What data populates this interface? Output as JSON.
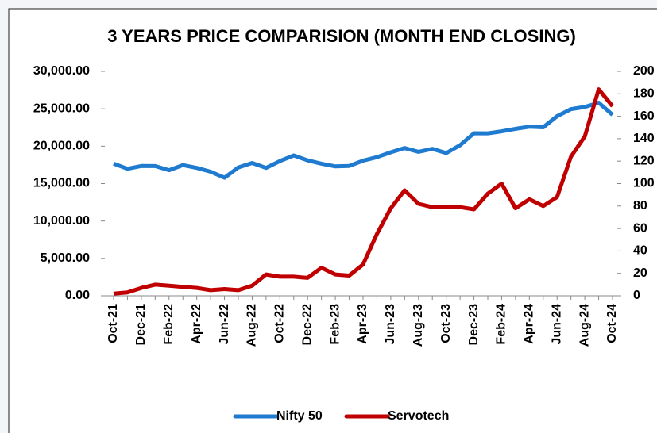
{
  "chart_data": {
    "type": "line",
    "title": "3 YEARS PRICE COMPARISION (MONTH END CLOSING)",
    "categories": [
      "Oct-21",
      null,
      "Dec-21",
      null,
      "Feb-22",
      null,
      "Apr-22",
      null,
      "Jun-22",
      null,
      "Aug-22",
      null,
      "Oct-22",
      null,
      "Dec-22",
      null,
      "Feb-23",
      null,
      "Apr-23",
      null,
      "Jun-23",
      null,
      "Aug-23",
      null,
      "Oct-23",
      null,
      "Dec-23",
      null,
      "Feb-24",
      null,
      "Apr-24",
      null,
      "Jun-24",
      null,
      "Aug-24",
      null,
      "Oct-24"
    ],
    "series": [
      {
        "name": "Nifty 50",
        "color": "#1f7bd0",
        "values": [
          17672,
          16983,
          17354,
          17340,
          16794,
          17465,
          17103,
          16585,
          15780,
          17158,
          17759,
          17094,
          18012,
          18758,
          18105,
          17662,
          17304,
          17360,
          18065,
          18534,
          19189,
          19754,
          19254,
          19638,
          19080,
          20133,
          21731,
          21726,
          21983,
          22327,
          22605,
          22531,
          24011,
          24951,
          25236,
          25811,
          24205
        ]
      },
      {
        "name": "Servotech",
        "color": "#c00000",
        "axis": "y2",
        "values": [
          2,
          3,
          7,
          10,
          9,
          8,
          7,
          5,
          6,
          5,
          9,
          19,
          17,
          17,
          16,
          25,
          19,
          18,
          28,
          55,
          78,
          94,
          82,
          79,
          79,
          79,
          77,
          91,
          100,
          78,
          86,
          80,
          88,
          124,
          142,
          184,
          169
        ]
      }
    ],
    "ylim": [
      0,
      30000
    ],
    "yticks": [
      {
        "value": 0,
        "label": "0.00"
      },
      {
        "value": 5000,
        "label": "5,000.00"
      },
      {
        "value": 10000,
        "label": "10,000.00"
      },
      {
        "value": 15000,
        "label": "15,000.00"
      },
      {
        "value": 20000,
        "label": "20,000.00"
      },
      {
        "value": 25000,
        "label": "25,000.00"
      },
      {
        "value": 30000,
        "label": "30,000.00"
      }
    ],
    "y2lim": [
      0,
      200
    ],
    "y2ticks": [
      0,
      20,
      40,
      60,
      80,
      100,
      120,
      140,
      160,
      180,
      200
    ],
    "legend": "bottom"
  }
}
